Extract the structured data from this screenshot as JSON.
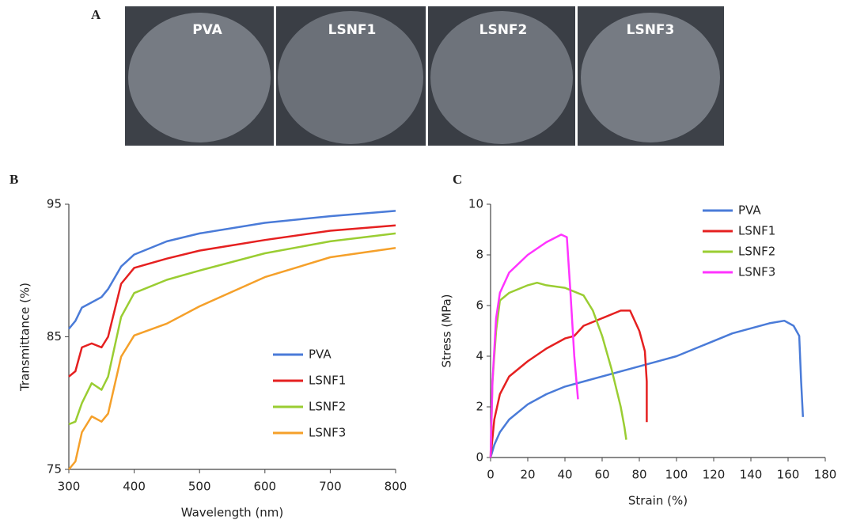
{
  "panels": [
    "A",
    "B",
    "C"
  ],
  "photos": [
    "PVA",
    "LSNF1",
    "LSNF2",
    "LSNF3"
  ],
  "chart_data": [
    {
      "type": "line",
      "x_label": "Wavelength (nm)",
      "y_label": "Transmittance (%)",
      "x": [
        300,
        310,
        320,
        335,
        350,
        360,
        380,
        400,
        450,
        500,
        600,
        700,
        800
      ],
      "xlim": [
        300,
        800
      ],
      "xticks": [
        300,
        400,
        500,
        600,
        700,
        800
      ],
      "ylim": [
        75,
        95
      ],
      "yticks": [
        75,
        85,
        95
      ],
      "legend": "lower right",
      "series": [
        {
          "name": "PVA",
          "color": "#4a7bd8",
          "values": [
            85.6,
            86.2,
            87.2,
            87.6,
            88.0,
            88.6,
            90.3,
            91.2,
            92.2,
            92.8,
            93.6,
            94.1,
            94.5
          ]
        },
        {
          "name": "LSNF1",
          "color": "#e52020",
          "values": [
            82.0,
            82.4,
            84.2,
            84.5,
            84.2,
            85.0,
            89.0,
            90.2,
            90.9,
            91.5,
            92.3,
            93.0,
            93.4
          ]
        },
        {
          "name": "LSNF2",
          "color": "#9acd32",
          "values": [
            78.4,
            78.6,
            80.0,
            81.5,
            81.0,
            82.0,
            86.5,
            88.3,
            89.3,
            90.0,
            91.3,
            92.2,
            92.8
          ]
        },
        {
          "name": "LSNF3",
          "color": "#f5a02a",
          "values": [
            75.0,
            75.6,
            77.8,
            79.0,
            78.6,
            79.2,
            83.5,
            85.1,
            86.0,
            87.3,
            89.5,
            91.0,
            91.7
          ]
        }
      ]
    },
    {
      "type": "line",
      "x_label": "Strain (%)",
      "y_label": "Stress (MPa)",
      "xlim": [
        0,
        180
      ],
      "xticks": [
        0,
        20,
        40,
        60,
        80,
        100,
        120,
        140,
        160,
        180
      ],
      "ylim": [
        0,
        10
      ],
      "yticks": [
        0,
        2,
        4,
        6,
        8,
        10
      ],
      "legend": "upper right",
      "series": [
        {
          "name": "PVA",
          "color": "#4a7bd8",
          "x": [
            0,
            2,
            5,
            10,
            20,
            30,
            40,
            50,
            60,
            70,
            80,
            90,
            100,
            110,
            120,
            130,
            140,
            150,
            158,
            163,
            166,
            167,
            168
          ],
          "values": [
            0,
            0.5,
            1.0,
            1.5,
            2.1,
            2.5,
            2.8,
            3.0,
            3.2,
            3.4,
            3.6,
            3.8,
            4.0,
            4.3,
            4.6,
            4.9,
            5.1,
            5.3,
            5.4,
            5.2,
            4.8,
            3.0,
            1.6
          ]
        },
        {
          "name": "LSNF1",
          "color": "#e52020",
          "x": [
            0,
            2,
            5,
            10,
            20,
            30,
            40,
            45,
            50,
            60,
            70,
            75,
            80,
            83,
            84,
            84
          ],
          "values": [
            0,
            1.5,
            2.5,
            3.2,
            3.8,
            4.3,
            4.7,
            4.8,
            5.2,
            5.5,
            5.8,
            5.8,
            5.0,
            4.2,
            3.0,
            1.4
          ]
        },
        {
          "name": "LSNF2",
          "color": "#9acd32",
          "x": [
            0,
            1,
            3,
            5,
            10,
            20,
            25,
            30,
            40,
            50,
            55,
            60,
            65,
            70,
            72,
            73
          ],
          "values": [
            0,
            3.0,
            5.0,
            6.2,
            6.5,
            6.8,
            6.9,
            6.8,
            6.7,
            6.4,
            5.8,
            4.8,
            3.5,
            2.0,
            1.2,
            0.7
          ]
        },
        {
          "name": "LSNF3",
          "color": "#ff33ff",
          "x": [
            0,
            1,
            3,
            5,
            10,
            20,
            30,
            38,
            41,
            43,
            45,
            47
          ],
          "values": [
            0,
            3.0,
            5.5,
            6.5,
            7.3,
            8.0,
            8.5,
            8.8,
            8.7,
            6.5,
            4.0,
            2.3
          ]
        }
      ]
    }
  ]
}
